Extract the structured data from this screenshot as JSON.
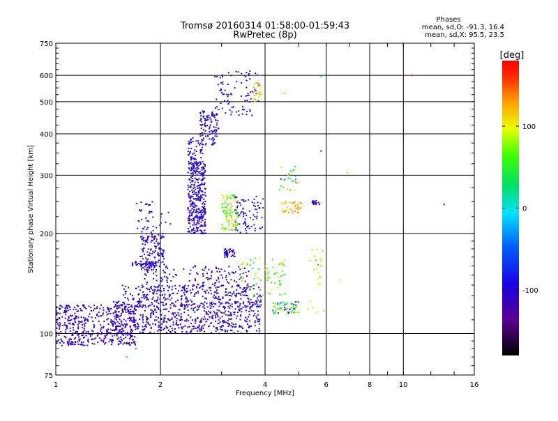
{
  "chart_data": {
    "type": "scatter",
    "title": "Tromsø 20160314 01:58:00-01:59:43",
    "subtitle": "RwPretec (8p)",
    "xlabel": "Frequency [MHz]",
    "ylabel": "Stationary phase Virtual Height [km]",
    "x_scale": "log",
    "y_scale": "log",
    "xlim": [
      1,
      16
    ],
    "ylim": [
      75,
      750
    ],
    "x_ticks": [
      1,
      2,
      4,
      6,
      8,
      10,
      16
    ],
    "y_ticks": [
      75,
      100,
      200,
      300,
      400,
      500,
      600,
      750
    ],
    "grid": true,
    "phase_info": {
      "header": "Phases",
      "line_o": "mean, sd,O: -91.3, 16.4",
      "line_x": "mean, sd,X:  95.5, 23.5"
    },
    "colorbar": {
      "label": "[deg]",
      "range": [
        -180,
        180
      ],
      "ticks": [
        100,
        0,
        -100
      ],
      "colormap": "rainbow"
    },
    "clusters": [
      {
        "f": [
          1.0,
          1.7
        ],
        "h": [
          92,
          122
        ],
        "phase": [
          -120,
          -90
        ],
        "n": 480
      },
      {
        "f": [
          1.45,
          3.9
        ],
        "h": [
          100,
          125
        ],
        "phase": [
          -120,
          -85
        ],
        "n": 520
      },
      {
        "f": [
          1.55,
          3.9
        ],
        "h": [
          120,
          140
        ],
        "phase": [
          -120,
          -80
        ],
        "n": 280
      },
      {
        "f": [
          1.8,
          3.6
        ],
        "h": [
          130,
          160
        ],
        "phase": [
          -115,
          -80
        ],
        "n": 180
      },
      {
        "f": [
          1.75,
          2.05
        ],
        "h": [
          155,
          200
        ],
        "phase": [
          -115,
          -85
        ],
        "n": 140
      },
      {
        "f": [
          1.65,
          1.95
        ],
        "h": [
          160,
          165
        ],
        "phase": [
          -110,
          -90
        ],
        "n": 40
      },
      {
        "f": [
          1.7,
          2.15
        ],
        "h": [
          200,
          250
        ],
        "phase": [
          -110,
          -85
        ],
        "n": 40
      },
      {
        "f": [
          2.4,
          2.7
        ],
        "h": [
          200,
          330
        ],
        "phase": [
          -115,
          -85
        ],
        "n": 340
      },
      {
        "f": [
          2.4,
          2.65
        ],
        "h": [
          300,
          390
        ],
        "phase": [
          -110,
          -80
        ],
        "n": 70
      },
      {
        "f": [
          2.6,
          2.95
        ],
        "h": [
          370,
          470
        ],
        "phase": [
          -110,
          -85
        ],
        "n": 110
      },
      {
        "f": [
          2.85,
          3.85
        ],
        "h": [
          450,
          620
        ],
        "phase": [
          -110,
          -85
        ],
        "n": 90
      },
      {
        "f": [
          3.05,
          3.3
        ],
        "h": [
          170,
          180
        ],
        "phase": [
          -115,
          -90
        ],
        "n": 40
      },
      {
        "f": [
          3.0,
          3.35
        ],
        "h": [
          205,
          262
        ],
        "phase": [
          40,
          120
        ],
        "n": 110
      },
      {
        "f": [
          3.7,
          3.9
        ],
        "h": [
          500,
          570
        ],
        "phase": [
          90,
          130
        ],
        "n": 25
      },
      {
        "f": [
          3.25,
          3.95
        ],
        "h": [
          200,
          260
        ],
        "phase": [
          -110,
          -70
        ],
        "n": 80
      },
      {
        "f": [
          3.4,
          4.6
        ],
        "h": [
          130,
          170
        ],
        "phase": [
          20,
          120
        ],
        "n": 70
      },
      {
        "f": [
          4.2,
          5.0
        ],
        "h": [
          115,
          125
        ],
        "phase": [
          -100,
          120
        ],
        "n": 70
      },
      {
        "f": [
          4.45,
          5.1
        ],
        "h": [
          230,
          250
        ],
        "phase": [
          110,
          140
        ],
        "n": 40
      },
      {
        "f": [
          4.4,
          5.0
        ],
        "h": [
          270,
          320
        ],
        "phase": [
          -60,
          140
        ],
        "n": 30
      },
      {
        "f": [
          5.45,
          5.75
        ],
        "h": [
          245,
          252
        ],
        "phase": [
          -120,
          -90
        ],
        "n": 18
      },
      {
        "f": [
          5.3,
          5.9
        ],
        "h": [
          115,
          180
        ],
        "phase": [
          80,
          140
        ],
        "n": 25
      }
    ],
    "outliers": [
      {
        "f": 10.6,
        "h": 600,
        "phase": 170
      },
      {
        "f": 13.1,
        "h": 245,
        "phase": -120
      },
      {
        "f": 6.9,
        "h": 305,
        "phase": 120
      },
      {
        "f": 6.6,
        "h": 145,
        "phase": 100
      },
      {
        "f": 5.8,
        "h": 595,
        "phase": -10
      },
      {
        "f": 5.8,
        "h": 355,
        "phase": -100
      },
      {
        "f": 4.55,
        "h": 530,
        "phase": 130
      },
      {
        "f": 1.6,
        "h": 85,
        "phase": 40
      },
      {
        "f": 1.7,
        "h": 90,
        "phase": 170
      }
    ]
  }
}
